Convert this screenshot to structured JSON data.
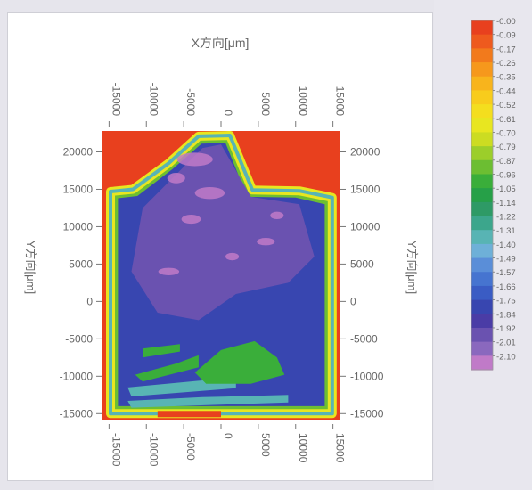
{
  "chart_data": {
    "type": "heatmap",
    "xlabel": "X方向[μm]",
    "ylabel_left": "Y方向[μm]",
    "ylabel_right": "Y方向[μm]",
    "x_ticks": [
      "-15000",
      "-10000",
      "-5000",
      "0",
      "5000",
      "10000",
      "15000"
    ],
    "x_tick_values": [
      -15000,
      -10000,
      -5000,
      0,
      5000,
      10000,
      15000
    ],
    "y_ticks": [
      "20000",
      "15000",
      "10000",
      "5000",
      "0",
      "-5000",
      "-10000",
      "-15000"
    ],
    "y_tick_values": [
      20000,
      15000,
      10000,
      5000,
      0,
      -5000,
      -10000,
      -15000
    ],
    "xlim": [
      -16000,
      16000
    ],
    "ylim": [
      -15800,
      22800
    ],
    "colorbar": {
      "labels": [
        "-0.00",
        "-0.09",
        "-0.17",
        "-0.26",
        "-0.35",
        "-0.44",
        "-0.52",
        "-0.61",
        "-0.70",
        "-0.79",
        "-0.87",
        "-0.96",
        "-1.05",
        "-1.14",
        "-1.22",
        "-1.31",
        "-1.40",
        "-1.49",
        "-1.57",
        "-1.66",
        "-1.75",
        "-1.84",
        "-1.92",
        "-2.01",
        "-2.10"
      ],
      "colors": [
        "#e8401e",
        "#ee5a1e",
        "#f27a1c",
        "#f6981c",
        "#f8b41c",
        "#f8cc1c",
        "#f4de1e",
        "#e8e620",
        "#ccdc22",
        "#9cce2a",
        "#6cbe32",
        "#3aae3a",
        "#26a048",
        "#2e9a66",
        "#3ca68c",
        "#58b4b4",
        "#6eb0d8",
        "#5a8ed8",
        "#4674d0",
        "#3a5cc4",
        "#3846b0",
        "#4a3ca6",
        "#6a52b0",
        "#8a68be",
        "#c07ac8"
      ]
    },
    "zones": [
      {
        "name": "outside",
        "value": 0.0
      },
      {
        "name": "edge-band",
        "value": -0.6
      },
      {
        "name": "interior",
        "value": -1.75
      },
      {
        "name": "upper-peak",
        "value": -1.92
      },
      {
        "name": "highlight",
        "value": -2.1
      },
      {
        "name": "lower-streaks",
        "value": -1.0
      }
    ]
  }
}
